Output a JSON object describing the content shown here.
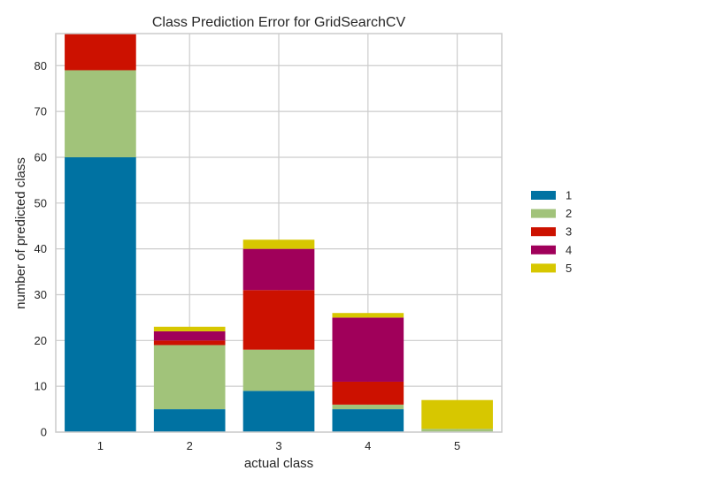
{
  "chart_data": {
    "type": "bar",
    "stacked": true,
    "title": "Class Prediction Error for GridSearchCV",
    "xlabel": "actual class",
    "ylabel": "number of predicted class",
    "categories": [
      "1",
      "2",
      "3",
      "4",
      "5"
    ],
    "ylim": [
      0,
      87
    ],
    "yticks": [
      0,
      10,
      20,
      30,
      40,
      50,
      60,
      70,
      80
    ],
    "grid": true,
    "legend": "right",
    "series": [
      {
        "name": "1",
        "color": "#0072a2",
        "values": [
          60,
          5,
          9,
          5,
          0
        ]
      },
      {
        "name": "2",
        "color": "#a1c37a",
        "values": [
          19,
          14,
          9,
          1,
          0.7
        ]
      },
      {
        "name": "3",
        "color": "#cc1100",
        "values": [
          8,
          1,
          13,
          5,
          0
        ]
      },
      {
        "name": "4",
        "color": "#a0005a",
        "values": [
          0,
          2,
          9,
          14,
          0
        ]
      },
      {
        "name": "5",
        "color": "#d7c700",
        "values": [
          0,
          1,
          2,
          1,
          6.3
        ]
      }
    ]
  }
}
